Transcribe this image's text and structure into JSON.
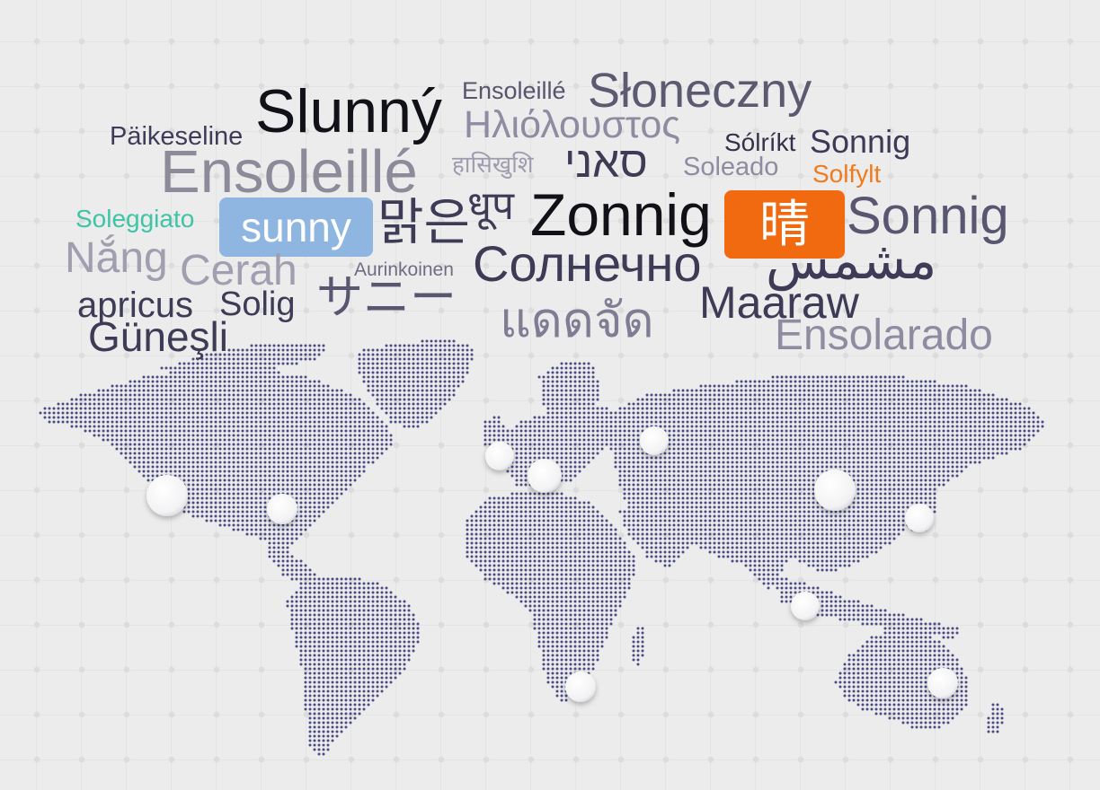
{
  "words": [
    {
      "id": "slunny",
      "text": "Slunný"
    },
    {
      "id": "ensoleille-small",
      "text": "Ensoleillé"
    },
    {
      "id": "sloneczny",
      "text": "Słoneczny"
    },
    {
      "id": "paikeseline",
      "text": "Päikeseline"
    },
    {
      "id": "greek",
      "text": "Ηλιόλουστος"
    },
    {
      "id": "ensoleille-large",
      "text": "Ensoleillé"
    },
    {
      "id": "hindi",
      "text": "हासिखुशि"
    },
    {
      "id": "hebrew",
      "text": "סאני"
    },
    {
      "id": "soleado",
      "text": "Soleado"
    },
    {
      "id": "solrikt",
      "text": "Sólríkt"
    },
    {
      "id": "sonnig-top",
      "text": "Sonnig"
    },
    {
      "id": "solfylt",
      "text": "Solfylt"
    },
    {
      "id": "soleggiato",
      "text": "Soleggiato"
    },
    {
      "id": "sunny",
      "text": "sunny"
    },
    {
      "id": "korean",
      "text": "맑은"
    },
    {
      "id": "dhup",
      "text": "धूप"
    },
    {
      "id": "zonnig",
      "text": "Zonnig"
    },
    {
      "id": "chinese",
      "text": "晴"
    },
    {
      "id": "sonnig-big",
      "text": "Sonnig"
    },
    {
      "id": "nang",
      "text": "Nắng"
    },
    {
      "id": "cerah",
      "text": "Cerah"
    },
    {
      "id": "aurinkoinen",
      "text": "Aurinkoinen"
    },
    {
      "id": "russian",
      "text": "Солнечно"
    },
    {
      "id": "arabic",
      "text": "مشمس"
    },
    {
      "id": "apricus",
      "text": "apricus"
    },
    {
      "id": "solig",
      "text": "Solig"
    },
    {
      "id": "japanese",
      "text": "サニー"
    },
    {
      "id": "thai",
      "text": "แดดจัด"
    },
    {
      "id": "maaraw",
      "text": "Maaraw"
    },
    {
      "id": "gunesli",
      "text": "Güneşli"
    },
    {
      "id": "ensolarado",
      "text": "Ensolarado"
    }
  ],
  "map": {
    "dot_color": "#4b4a82",
    "marker_color": "#ffffff",
    "markers": [
      "los-angeles",
      "new-york",
      "london",
      "paris",
      "moscow",
      "beijing",
      "tokyo",
      "singapore",
      "cape-town",
      "sydney"
    ]
  },
  "colors": {
    "background": "#ececec",
    "highlight_blue": "#8fb6e0",
    "highlight_orange": "#f26a10",
    "accent_teal": "#3ec4a7",
    "accent_orange": "#f07b1e"
  }
}
